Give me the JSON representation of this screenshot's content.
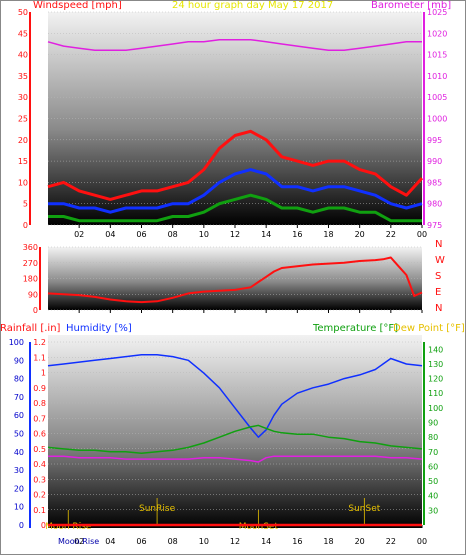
{
  "header": {
    "left": "Windspeed [mph]",
    "center": "24 hour graph day   May 17 2017",
    "right": "Barometer [mb]"
  },
  "chart_data": [
    {
      "type": "line",
      "panel": "wind-barometer",
      "x_ticks": [
        "02",
        "04",
        "06",
        "08",
        "10",
        "12",
        "14",
        "16",
        "18",
        "20",
        "22",
        "00"
      ],
      "y_left": {
        "label": "Windspeed [mph]",
        "lim": [
          0,
          50
        ],
        "ticks": [
          "0",
          "5",
          "10",
          "15",
          "20",
          "25",
          "30",
          "35",
          "40",
          "45",
          "50"
        ]
      },
      "y_right": {
        "label": "Barometer [mb]",
        "lim": [
          975,
          1025
        ],
        "ticks": [
          "975",
          "980",
          "985",
          "990",
          "995",
          "1000",
          "1005",
          "1010",
          "1015",
          "1020",
          "1025"
        ]
      },
      "x": [
        0,
        1,
        2,
        3,
        4,
        5,
        6,
        7,
        8,
        9,
        10,
        11,
        12,
        13,
        14,
        15,
        16,
        17,
        18,
        19,
        20,
        21,
        22,
        23,
        24
      ],
      "series": [
        {
          "role": "barometer",
          "axis": "right",
          "color": "#e020e0",
          "values": [
            1018,
            1017,
            1016.5,
            1016,
            1016,
            1016,
            1016.5,
            1017,
            1017.5,
            1018,
            1018,
            1018.5,
            1018.5,
            1018.5,
            1018,
            1017.5,
            1017,
            1016.5,
            1016,
            1016,
            1016.5,
            1017,
            1017.5,
            1018,
            1018
          ]
        },
        {
          "role": "wind-gust",
          "axis": "left",
          "color": "#ff1010",
          "values": [
            9,
            10,
            8,
            7,
            6,
            7,
            8,
            8,
            9,
            10,
            13,
            18,
            21,
            22,
            20,
            16,
            15,
            14,
            15,
            15,
            13,
            12,
            9,
            7,
            11
          ]
        },
        {
          "role": "wind-average",
          "axis": "left",
          "color": "#1030ff",
          "values": [
            5,
            5,
            4,
            4,
            3,
            4,
            4,
            4,
            5,
            5,
            7,
            10,
            12,
            13,
            12,
            9,
            9,
            8,
            9,
            9,
            8,
            7,
            5,
            4,
            5
          ]
        },
        {
          "role": "wind-lull",
          "axis": "left",
          "color": "#10a010",
          "values": [
            2,
            2,
            1,
            1,
            1,
            1,
            1,
            1,
            2,
            2,
            3,
            5,
            6,
            7,
            6,
            4,
            4,
            3,
            4,
            4,
            3,
            3,
            1,
            1,
            1
          ]
        }
      ]
    },
    {
      "type": "line",
      "panel": "wind-direction",
      "x_ticks": [
        "02",
        "04",
        "06",
        "08",
        "10",
        "12",
        "14",
        "16",
        "18",
        "20",
        "22",
        "00"
      ],
      "y_left": {
        "lim": [
          0,
          360
        ],
        "ticks": [
          "0",
          "90",
          "180",
          "270",
          "360"
        ]
      },
      "compass": [
        "N",
        "W",
        "S",
        "E",
        "N"
      ],
      "x": [
        0,
        1,
        2,
        3,
        4,
        5,
        6,
        7,
        8,
        9,
        10,
        11,
        12,
        13,
        13.5,
        14,
        14.5,
        15,
        16,
        17,
        18,
        19,
        20,
        21,
        21.5,
        22,
        22.5,
        23,
        23.5,
        24
      ],
      "series": [
        {
          "role": "wind-direction",
          "color": "#ff1010",
          "values": [
            95,
            90,
            85,
            75,
            60,
            50,
            45,
            50,
            70,
            95,
            105,
            110,
            115,
            130,
            160,
            190,
            220,
            240,
            250,
            260,
            265,
            270,
            280,
            285,
            290,
            300,
            250,
            200,
            80,
            100
          ]
        }
      ]
    },
    {
      "type": "line",
      "panel": "humidity-temperature",
      "top_labels": {
        "rainfall": "Rainfall [.in]",
        "humidity": "Humidity [%]",
        "temperature": "Temperature [°F]",
        "dewpoint": "Dew Point [°F]"
      },
      "x_ticks": [
        "02",
        "04",
        "06",
        "08",
        "10",
        "12",
        "14",
        "16",
        "18",
        "20",
        "22",
        "00"
      ],
      "y_left_rain": {
        "lim": [
          0,
          1.2
        ],
        "ticks": [
          "0",
          "0.1",
          "0.2",
          "0.3",
          "0.4",
          "0.5",
          "0.6",
          "0.7",
          "0.8",
          "0.9",
          "1",
          "1.1",
          "1.2"
        ]
      },
      "y_left_humidity": {
        "lim": [
          0,
          100
        ],
        "ticks": [
          "0",
          "10",
          "20",
          "30",
          "40",
          "50",
          "60",
          "70",
          "80",
          "90",
          "100"
        ]
      },
      "y_right_temp": {
        "lim": [
          20,
          145
        ],
        "ticks": [
          "30",
          "40",
          "50",
          "60",
          "70",
          "80",
          "90",
          "100",
          "110",
          "120",
          "130",
          "140"
        ]
      },
      "x": [
        0,
        1,
        2,
        3,
        4,
        5,
        6,
        7,
        8,
        9,
        10,
        11,
        12,
        13,
        13.5,
        14,
        14.5,
        15,
        16,
        17,
        18,
        19,
        20,
        21,
        22,
        23,
        24
      ],
      "series": [
        {
          "role": "humidity",
          "axis": "humidity",
          "color": "#1030ff",
          "values": [
            87,
            88,
            89,
            90,
            91,
            92,
            93,
            93,
            92,
            90,
            83,
            75,
            64,
            53,
            48,
            52,
            60,
            66,
            72,
            75,
            77,
            80,
            82,
            85,
            91,
            88,
            87
          ]
        },
        {
          "role": "temperature",
          "axis": "temp",
          "color": "#10a010",
          "values": [
            73,
            72,
            71,
            71,
            70,
            70,
            69,
            70,
            71,
            73,
            76,
            80,
            84,
            87,
            88,
            86,
            84,
            83,
            82,
            82,
            80,
            79,
            77,
            76,
            74,
            73,
            72
          ]
        },
        {
          "role": "dew-point",
          "axis": "temp",
          "color": "#e020e0",
          "values": [
            67,
            67,
            66,
            66,
            66,
            65,
            65,
            65,
            65,
            65,
            66,
            66,
            65,
            64,
            63,
            66,
            67,
            67,
            67,
            67,
            67,
            67,
            67,
            67,
            66,
            66,
            65
          ]
        },
        {
          "role": "rainfall",
          "axis": "rain",
          "color": "#ff1010",
          "values": [
            0,
            0,
            0,
            0,
            0,
            0,
            0,
            0,
            0,
            0,
            0,
            0,
            0,
            0,
            0,
            0,
            0,
            0,
            0,
            0,
            0,
            0,
            0,
            0,
            0,
            0,
            0
          ]
        }
      ],
      "events": [
        {
          "label": "Moon Rise",
          "time": 1.3,
          "row": "low"
        },
        {
          "label": "SunRise",
          "time": 7.0,
          "row": "high"
        },
        {
          "label": "MoonSet",
          "time": 13.5,
          "row": "low"
        },
        {
          "label": "SunSet",
          "time": 20.3,
          "row": "high"
        }
      ],
      "bottom_label": "Moon Rise"
    }
  ]
}
